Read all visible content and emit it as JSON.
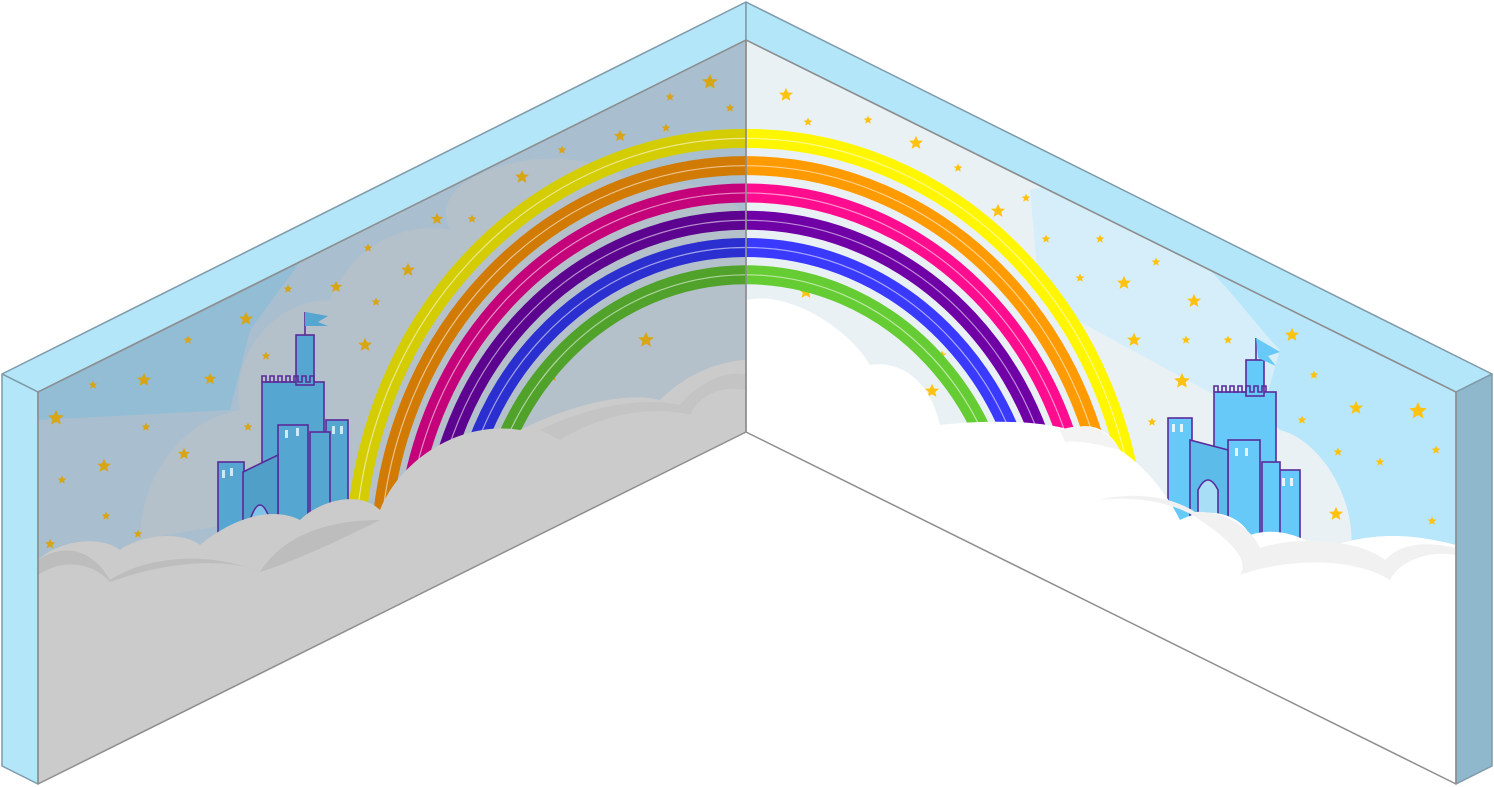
{
  "scene": {
    "item": "rainbow-castle-corner-wall",
    "motifs": [
      "rainbow",
      "castle",
      "clouds",
      "stars"
    ],
    "colors": {
      "wall_edge_top": "#b3e6f9",
      "wall_edge_side_left": "#b3e6f9",
      "wall_edge_side_right": "#8fb8cc",
      "outline": "#7f9aa8",
      "left_wall_sky": "#a9bfcf",
      "left_wall_sky_deep": "#93bcd5",
      "right_wall_sky": "#eaf1f5",
      "right_wall_sky_deep": "#b8e6fa",
      "cloud_left": "#cbcbcb",
      "cloud_left_shadow": "#bdbdbd",
      "cloud_right": "#ffffff",
      "cloud_right_shadow": "#f1f1f1",
      "castle_left": "#55a6d0",
      "castle_right": "#66c9f7",
      "castle_outline": "#5a2a9a",
      "star_left": "#d7a516",
      "star_right": "#ffc20e",
      "rainbow_left": [
        "#d4cd04",
        "#d17a04",
        "#c4037a",
        "#5c048f",
        "#2c2fd0",
        "#50a22b"
      ],
      "rainbow_right": [
        "#fff600",
        "#ff9a00",
        "#ff0c8f",
        "#6e00a6",
        "#3a3aff",
        "#66cc33"
      ]
    }
  }
}
